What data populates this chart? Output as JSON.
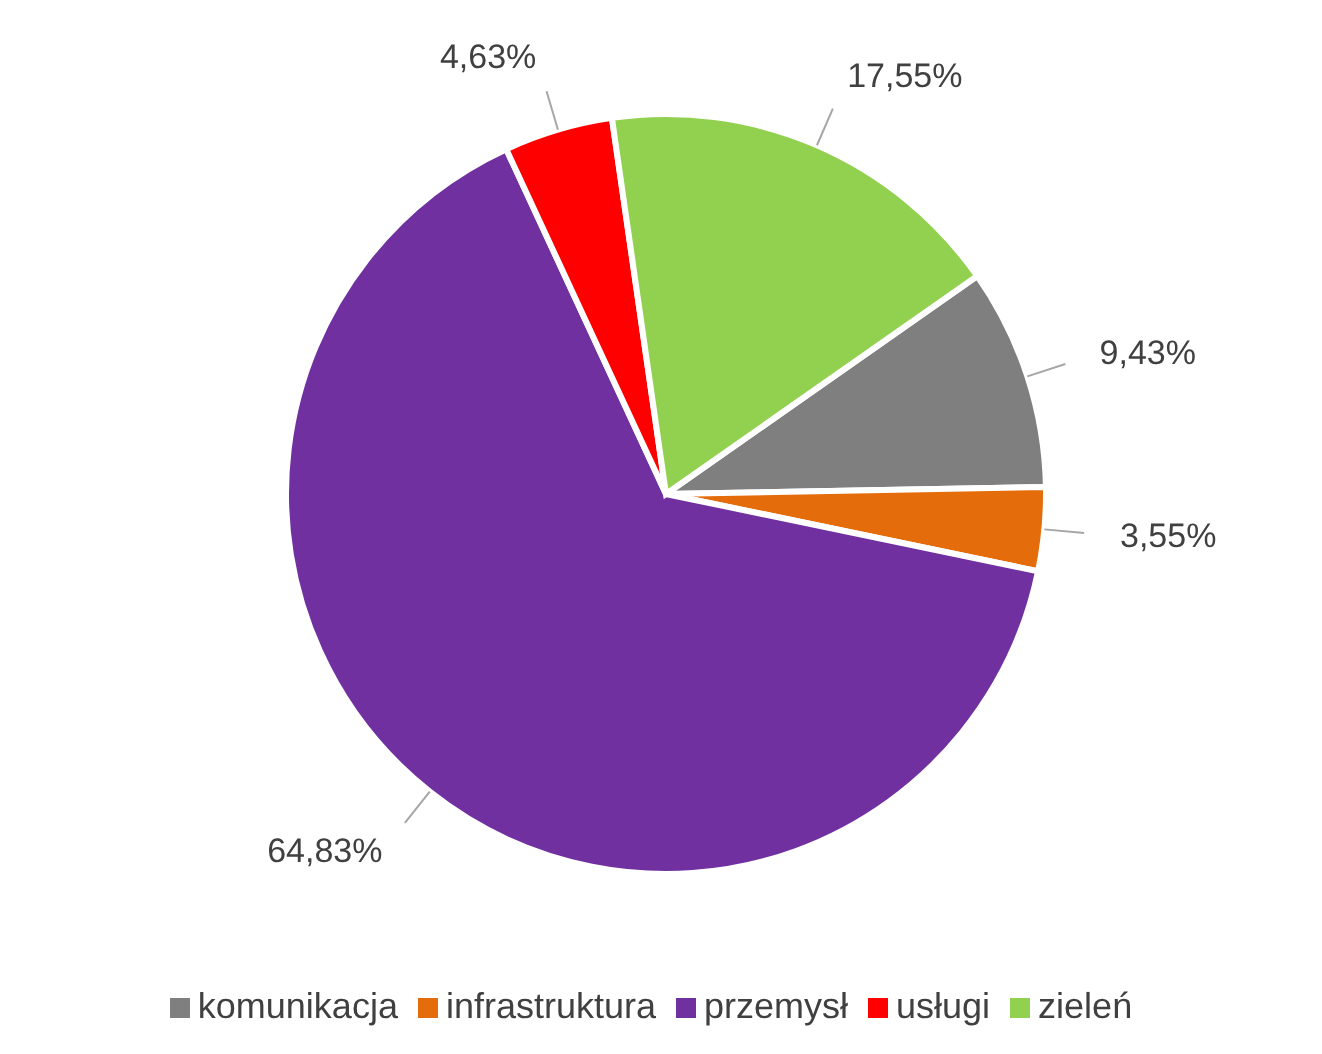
{
  "chart_data": {
    "type": "pie",
    "categories": [
      "komunikacja",
      "infrastruktura",
      "przemysł",
      "usługi",
      "zieleń"
    ],
    "values": [
      9.43,
      3.55,
      64.83,
      4.63,
      17.55
    ],
    "colors": [
      "#7f7f7f",
      "#e46c0a",
      "#7030a0",
      "#ff0000",
      "#92d050"
    ],
    "value_labels": [
      "9,43%",
      "3,55%",
      "64,83%",
      "4,63%",
      "17,55%"
    ],
    "legend": "bottom"
  }
}
